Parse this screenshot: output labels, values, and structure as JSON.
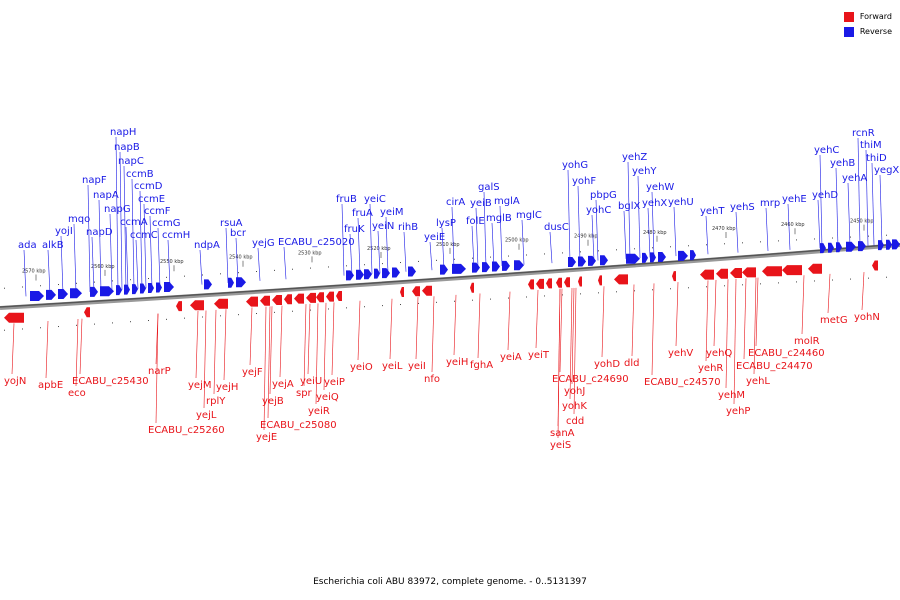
{
  "legend": {
    "forward": "Forward",
    "reverse": "Reverse",
    "forward_color": "#e8141a",
    "reverse_color": "#1a1ae6"
  },
  "caption": "Escherichia coli ABU 83972, complete genome. - 0..5131397",
  "ticks": [
    "2570 kbp",
    "2560 kbp",
    "2550 kbp",
    "2540 kbp",
    "2530 kbp",
    "2520 kbp",
    "2510 kbp",
    "2500 kbp",
    "2490 kbp",
    "2480 kbp",
    "2470 kbp",
    "2460 kbp",
    "2450 kbp"
  ],
  "reverse_labels": [
    "ada",
    "alkB",
    "yojI",
    "mqo",
    "napF",
    "napD",
    "napA",
    "napG",
    "napH",
    "napB",
    "napC",
    "ccmB",
    "ccmD",
    "ccmA",
    "ccmE",
    "ccmC",
    "ccmF",
    "ccmG",
    "ccmH",
    "ndpA",
    "rsuA",
    "bcr",
    "yejG",
    "ECABU_c25020",
    "fruB",
    "fruK",
    "fruA",
    "yeiC",
    "yeiN",
    "yeiM",
    "rihB",
    "lysP",
    "yeiE",
    "cirA",
    "folE",
    "yeiB",
    "galS",
    "mglB",
    "mglA",
    "mglC",
    "dusC",
    "yohG",
    "yohF",
    "yohC",
    "pbpG",
    "bglX",
    "yehZ",
    "yehY",
    "yehX",
    "yehW",
    "yehU",
    "yehT",
    "yehS",
    "mrp",
    "yehE",
    "yehD",
    "yehC",
    "yehB",
    "yehA",
    "rcnR",
    "thiM",
    "thiD",
    "yegX"
  ],
  "forward_labels": [
    "yojN",
    "apbE",
    "eco",
    "ECABU_c25430",
    "narP",
    "ECABU_c25260",
    "yejM",
    "yejL",
    "rplY",
    "yejH",
    "yejF",
    "yejB",
    "yejE",
    "yejA",
    "ECABU_c25080",
    "spr",
    "yeiU",
    "yeiR",
    "yeiQ",
    "yeiP",
    "yeiO",
    "yeiL",
    "yeiI",
    "nfo",
    "yeiH",
    "fghA",
    "yeiA",
    "yeiT",
    "ECABU_c24690",
    "yohJ",
    "yohK",
    "cdd",
    "sanA",
    "yeiS",
    "yohD",
    "dld",
    "yehV",
    "ECABU_c24570",
    "yehQ",
    "yehR",
    "yehM",
    "yehP",
    "yehL",
    "ECABU_c24470",
    "ECABU_c24460",
    "molR",
    "metG",
    "yohN"
  ]
}
